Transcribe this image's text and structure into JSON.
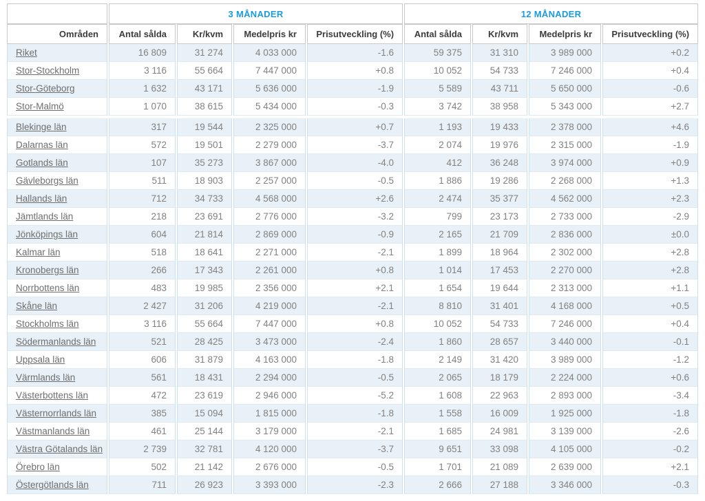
{
  "chart_data": {
    "type": "table",
    "row_header": "Områden",
    "column_groups": [
      "3 MÅNADER",
      "12 MÅNADER"
    ],
    "sub_columns": [
      "Antal sålda",
      "Kr/kvm",
      "Medelpris kr",
      "Prisutveckling (%)"
    ],
    "sections": [
      {
        "name": "riksomraden",
        "rows": [
          {
            "area": "Riket",
            "values_3m": [
              "16 809",
              "31 274",
              "4 033 000",
              "-1.6"
            ],
            "values_12m": [
              "59 375",
              "31 310",
              "3 989 000",
              "+0.2"
            ]
          },
          {
            "area": "Stor-Stockholm",
            "values_3m": [
              "3 116",
              "55 664",
              "7 447 000",
              "+0.8"
            ],
            "values_12m": [
              "10 052",
              "54 733",
              "7 246 000",
              "+0.4"
            ]
          },
          {
            "area": "Stor-Göteborg",
            "values_3m": [
              "1 632",
              "43 171",
              "5 636 000",
              "-1.9"
            ],
            "values_12m": [
              "5 589",
              "43 711",
              "5 650 000",
              "-0.6"
            ]
          },
          {
            "area": "Stor-Malmö",
            "values_3m": [
              "1 070",
              "38 615",
              "5 434 000",
              "-0.3"
            ],
            "values_12m": [
              "3 742",
              "38 958",
              "5 343 000",
              "+2.7"
            ]
          }
        ]
      },
      {
        "name": "lan",
        "rows": [
          {
            "area": "Blekinge län",
            "values_3m": [
              "317",
              "19 544",
              "2 325 000",
              "+0.7"
            ],
            "values_12m": [
              "1 193",
              "19 433",
              "2 378 000",
              "+4.6"
            ]
          },
          {
            "area": "Dalarnas län",
            "values_3m": [
              "572",
              "19 501",
              "2 279 000",
              "-3.7"
            ],
            "values_12m": [
              "2 074",
              "19 976",
              "2 315 000",
              "-1.9"
            ]
          },
          {
            "area": "Gotlands län",
            "values_3m": [
              "107",
              "35 273",
              "3 867 000",
              "-4.0"
            ],
            "values_12m": [
              "412",
              "36 248",
              "3 974 000",
              "+0.9"
            ]
          },
          {
            "area": "Gävleborgs län",
            "values_3m": [
              "511",
              "18 903",
              "2 257 000",
              "-0.5"
            ],
            "values_12m": [
              "1 886",
              "19 286",
              "2 268 000",
              "+1.3"
            ]
          },
          {
            "area": "Hallands län",
            "values_3m": [
              "712",
              "34 733",
              "4 568 000",
              "+2.6"
            ],
            "values_12m": [
              "2 474",
              "35 377",
              "4 562 000",
              "+2.3"
            ]
          },
          {
            "area": "Jämtlands län",
            "values_3m": [
              "218",
              "23 691",
              "2 776 000",
              "-3.2"
            ],
            "values_12m": [
              "799",
              "23 173",
              "2 733 000",
              "-2.9"
            ]
          },
          {
            "area": "Jönköpings län",
            "values_3m": [
              "604",
              "21 814",
              "2 869 000",
              "-0.9"
            ],
            "values_12m": [
              "2 165",
              "21 709",
              "2 836 000",
              "±0.0"
            ]
          },
          {
            "area": "Kalmar län",
            "values_3m": [
              "518",
              "18 641",
              "2 271 000",
              "-2.1"
            ],
            "values_12m": [
              "1 899",
              "18 964",
              "2 302 000",
              "+2.8"
            ]
          },
          {
            "area": "Kronobergs län",
            "values_3m": [
              "266",
              "17 343",
              "2 261 000",
              "+0.8"
            ],
            "values_12m": [
              "1 014",
              "17 453",
              "2 270 000",
              "+2.8"
            ]
          },
          {
            "area": "Norrbottens län",
            "values_3m": [
              "483",
              "19 985",
              "2 356 000",
              "+2.1"
            ],
            "values_12m": [
              "1 654",
              "19 644",
              "2 313 000",
              "+1.1"
            ]
          },
          {
            "area": "Skåne län",
            "values_3m": [
              "2 427",
              "31 206",
              "4 219 000",
              "-2.1"
            ],
            "values_12m": [
              "8 810",
              "31 401",
              "4 168 000",
              "+0.5"
            ]
          },
          {
            "area": "Stockholms län",
            "values_3m": [
              "3 116",
              "55 664",
              "7 447 000",
              "+0.8"
            ],
            "values_12m": [
              "10 052",
              "54 733",
              "7 246 000",
              "+0.4"
            ]
          },
          {
            "area": "Södermanlands län",
            "values_3m": [
              "521",
              "28 425",
              "3 473 000",
              "-2.4"
            ],
            "values_12m": [
              "1 860",
              "28 657",
              "3 440 000",
              "-0.1"
            ]
          },
          {
            "area": "Uppsala län",
            "values_3m": [
              "606",
              "31 879",
              "4 163 000",
              "-1.8"
            ],
            "values_12m": [
              "2 149",
              "31 420",
              "3 989 000",
              "-1.2"
            ]
          },
          {
            "area": "Värmlands län",
            "values_3m": [
              "561",
              "18 431",
              "2 294 000",
              "-0.5"
            ],
            "values_12m": [
              "2 065",
              "18 179",
              "2 224 000",
              "+0.6"
            ]
          },
          {
            "area": "Västerbottens län",
            "values_3m": [
              "472",
              "23 619",
              "2 946 000",
              "-5.2"
            ],
            "values_12m": [
              "1 608",
              "22 963",
              "2 893 000",
              "-3.4"
            ]
          },
          {
            "area": "Västernorrlands län",
            "values_3m": [
              "385",
              "15 094",
              "1 815 000",
              "-1.8"
            ],
            "values_12m": [
              "1 558",
              "16 009",
              "1 925 000",
              "-1.8"
            ]
          },
          {
            "area": "Västmanlands län",
            "values_3m": [
              "461",
              "25 144",
              "3 179 000",
              "-2.1"
            ],
            "values_12m": [
              "1 685",
              "24 981",
              "3 139 000",
              "-2.6"
            ]
          },
          {
            "area": "Västra Götalands län",
            "values_3m": [
              "2 739",
              "32 781",
              "4 120 000",
              "-3.7"
            ],
            "values_12m": [
              "9 651",
              "33 098",
              "4 105 000",
              "-0.2"
            ]
          },
          {
            "area": "Örebro län",
            "values_3m": [
              "502",
              "21 142",
              "2 676 000",
              "-0.5"
            ],
            "values_12m": [
              "1 701",
              "21 089",
              "2 639 000",
              "+2.1"
            ]
          },
          {
            "area": "Östergötlands län",
            "values_3m": [
              "711",
              "26 923",
              "3 393 000",
              "-2.3"
            ],
            "values_12m": [
              "2 666",
              "27 188",
              "3 346 000",
              "-0.3"
            ]
          }
        ]
      }
    ],
    "layout_hints": {
      "striped_rows": true,
      "section_gap_between": [
        "Stor-Malmö",
        "Blekinge län"
      ]
    },
    "colors": {
      "group_header_text": "#189cdd",
      "sub_header_text": "#3c3c3c",
      "cell_text": "#818181",
      "area_link_text": "#6e6e6e",
      "stripe_background": "#e8f1f8",
      "header_border": "#c9c9c9",
      "body_border": "#cfe0ed"
    }
  }
}
